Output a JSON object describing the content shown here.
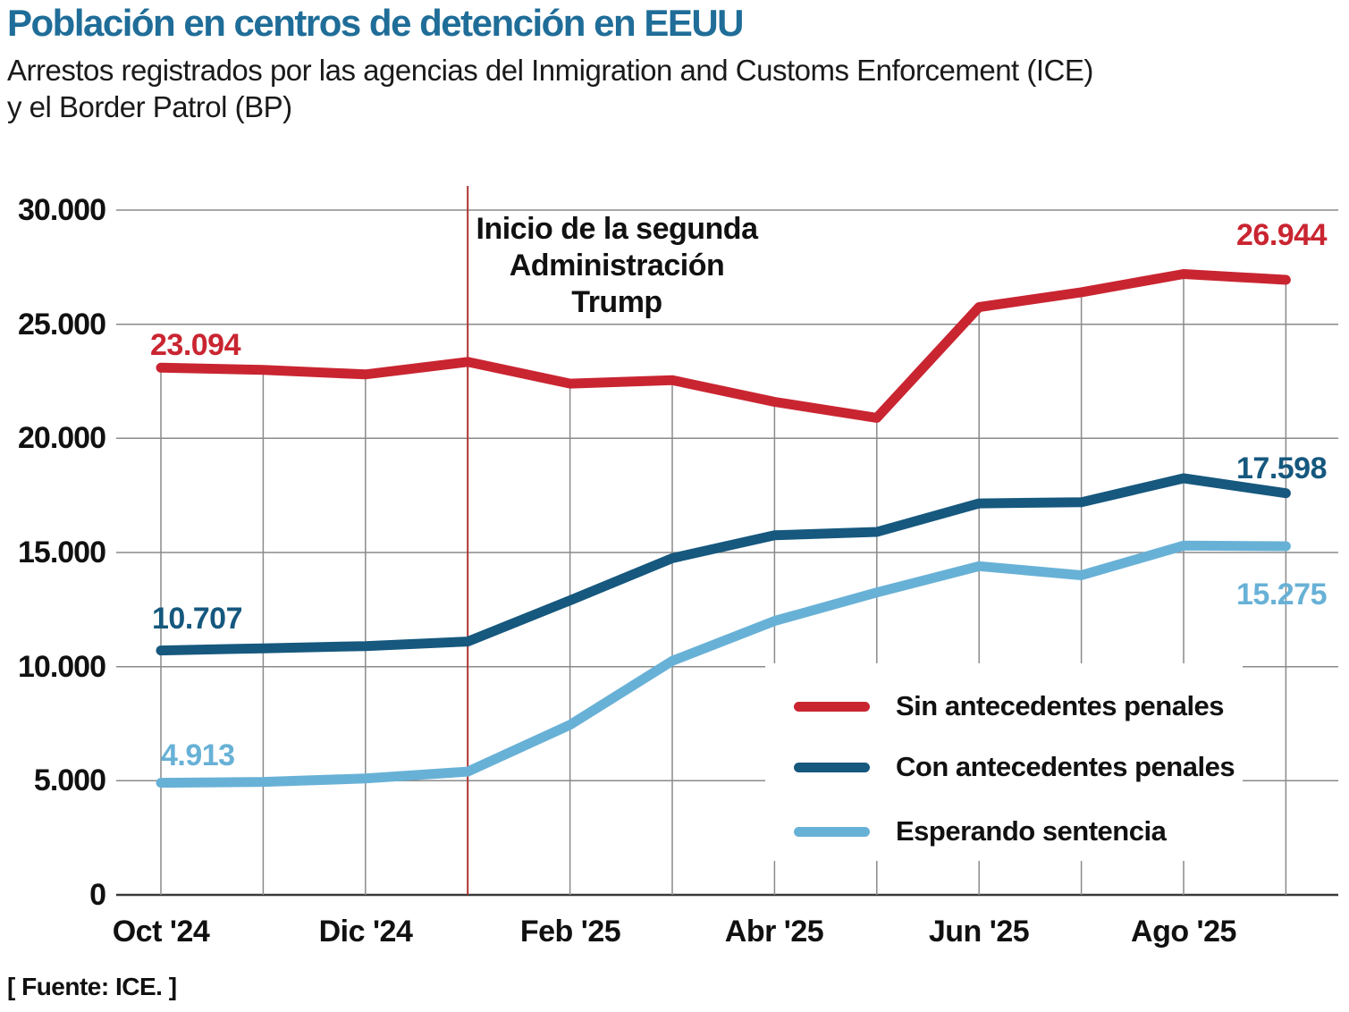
{
  "header": {
    "title": "Población en centros de detención en EEUU",
    "subtitle_lines": [
      "Arrestos registrados por las agencias del Inmigration and Customs Enforcement (ICE)",
      "y el Border Patrol (BP)"
    ],
    "title_color": "#1f6d98"
  },
  "annotation": {
    "lines": [
      "Inicio de la segunda",
      "Administración Trump"
    ]
  },
  "footer": {
    "source": "[ Fuente: ICE. ]"
  },
  "chart_data": {
    "type": "line",
    "x": [
      "Oct '24",
      "Nov '24",
      "Dic '24",
      "Ene '25",
      "Feb '25",
      "Mar '25",
      "Abr '25",
      "May '25",
      "Jun '25",
      "Jul '25",
      "Ago '25",
      "Sep '25"
    ],
    "x_axis_labels": [
      "Oct '24",
      "Dic '24",
      "Feb '25",
      "Abr '25",
      "Jun '25",
      "Ago '25"
    ],
    "x_axis_label_month_indices": [
      0,
      2,
      4,
      6,
      8,
      10
    ],
    "y_ticks": [
      0,
      5000,
      10000,
      15000,
      20000,
      25000,
      30000
    ],
    "y_tick_labels": [
      "0",
      "5.000",
      "10.000",
      "15.000",
      "20.000",
      "25.000",
      "30.000"
    ],
    "ylim": [
      0,
      30000
    ],
    "grid": "horizontal lines at every 5.000; vertical drop lines from top series at each month",
    "legend_position": "inside lower right",
    "series": [
      {
        "name": "Sin antecedentes penales",
        "color": "#c92531",
        "values": [
          23094,
          23000,
          22800,
          23350,
          22400,
          22550,
          21600,
          20900,
          25750,
          26400,
          27200,
          26944
        ],
        "start_label": "23.094",
        "end_label": "26.944"
      },
      {
        "name": "Con antecedentes penales",
        "color": "#16587e",
        "values": [
          10707,
          10800,
          10900,
          11100,
          12900,
          14750,
          15750,
          15900,
          17150,
          17200,
          18250,
          17598
        ],
        "start_label": "10.707",
        "end_label": "17.598"
      },
      {
        "name": "Esperando sentencia",
        "color": "#68b1d6",
        "values": [
          4913,
          4950,
          5100,
          5400,
          7450,
          10250,
          12000,
          13250,
          14400,
          14000,
          15300,
          15275
        ],
        "start_label": "4.913",
        "end_label": "15.275"
      }
    ],
    "event_line": {
      "label": "Inicio de la segunda Administración Trump",
      "month_index": 3,
      "color": "#ad3431"
    },
    "grid_color": "#8a8a8a",
    "axis_color": "#3a3a3a"
  }
}
